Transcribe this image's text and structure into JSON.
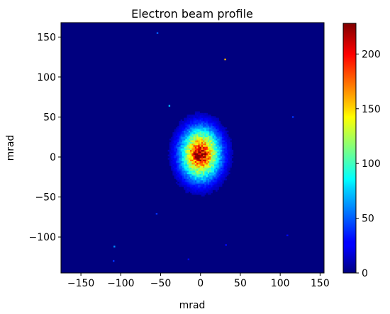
{
  "chart_data": {
    "type": "heatmap",
    "title": "Electron beam profile",
    "xlabel": "mrad",
    "ylabel": "mrad",
    "xlim": [
      -175,
      155
    ],
    "ylim": [
      -145,
      168
    ],
    "x_ticks": [
      -150,
      -100,
      -50,
      0,
      50,
      100,
      150
    ],
    "x_tick_labels": [
      "−150",
      "−100",
      "−50",
      "0",
      "50",
      "100",
      "150"
    ],
    "y_ticks": [
      -100,
      -50,
      0,
      50,
      100,
      150
    ],
    "y_tick_labels": [
      "−100",
      "−50",
      "0",
      "50",
      "100",
      "150"
    ],
    "colormap": "jet",
    "grid": false,
    "background_value": 0,
    "beam": {
      "center": [
        0,
        4
      ],
      "peak_value": 228,
      "sigma_x": 17,
      "sigma_y": 22,
      "core_center": [
        -1,
        2
      ],
      "core_peak": 35,
      "core_sigma": 6
    },
    "hot_pixels": [
      {
        "x": 31,
        "y": 122,
        "value": 160
      },
      {
        "x": -54,
        "y": 155,
        "value": 50
      },
      {
        "x": -39,
        "y": 64,
        "value": 70
      },
      {
        "x": 116,
        "y": 50,
        "value": 40
      },
      {
        "x": -108,
        "y": -112,
        "value": 60
      },
      {
        "x": -109,
        "y": -130,
        "value": 40
      },
      {
        "x": -55,
        "y": -71,
        "value": 40
      },
      {
        "x": 32,
        "y": -110,
        "value": 30
      },
      {
        "x": -15,
        "y": -128,
        "value": 30
      },
      {
        "x": 109,
        "y": -98,
        "value": 30
      }
    ],
    "colorbar": {
      "vmin": 0,
      "vmax": 228,
      "ticks": [
        0,
        50,
        100,
        150,
        200
      ],
      "tick_labels": [
        "0",
        "50",
        "100",
        "150",
        "200"
      ]
    }
  }
}
